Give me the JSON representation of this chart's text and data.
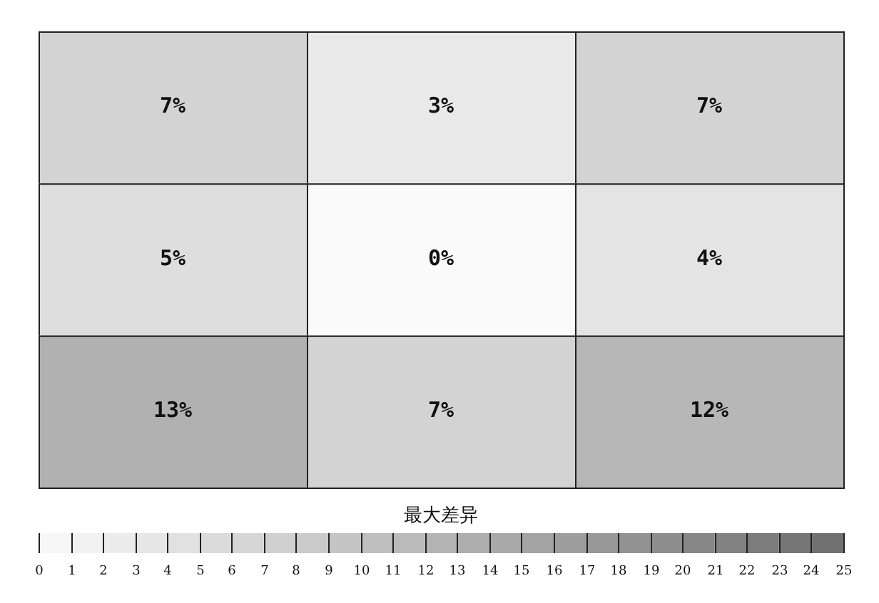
{
  "chart_data": {
    "type": "heatmap",
    "categories": [
      null,
      null,
      null
    ],
    "y_categories": [
      null,
      null,
      null
    ],
    "cells": [
      [
        7,
        3,
        7
      ],
      [
        5,
        0,
        4
      ],
      [
        13,
        7,
        12
      ]
    ],
    "cell_labels": [
      [
        "7%",
        "3%",
        "7%"
      ],
      [
        "5%",
        "0%",
        "4%"
      ],
      [
        "13%",
        "7%",
        "12%"
      ]
    ],
    "clabel": "最大差异",
    "clim": [
      0,
      25
    ],
    "cticks": [
      0,
      1,
      2,
      3,
      4,
      5,
      6,
      7,
      8,
      9,
      10,
      11,
      12,
      13,
      14,
      15,
      16,
      17,
      18,
      19,
      20,
      21,
      22,
      23,
      24,
      25
    ]
  }
}
